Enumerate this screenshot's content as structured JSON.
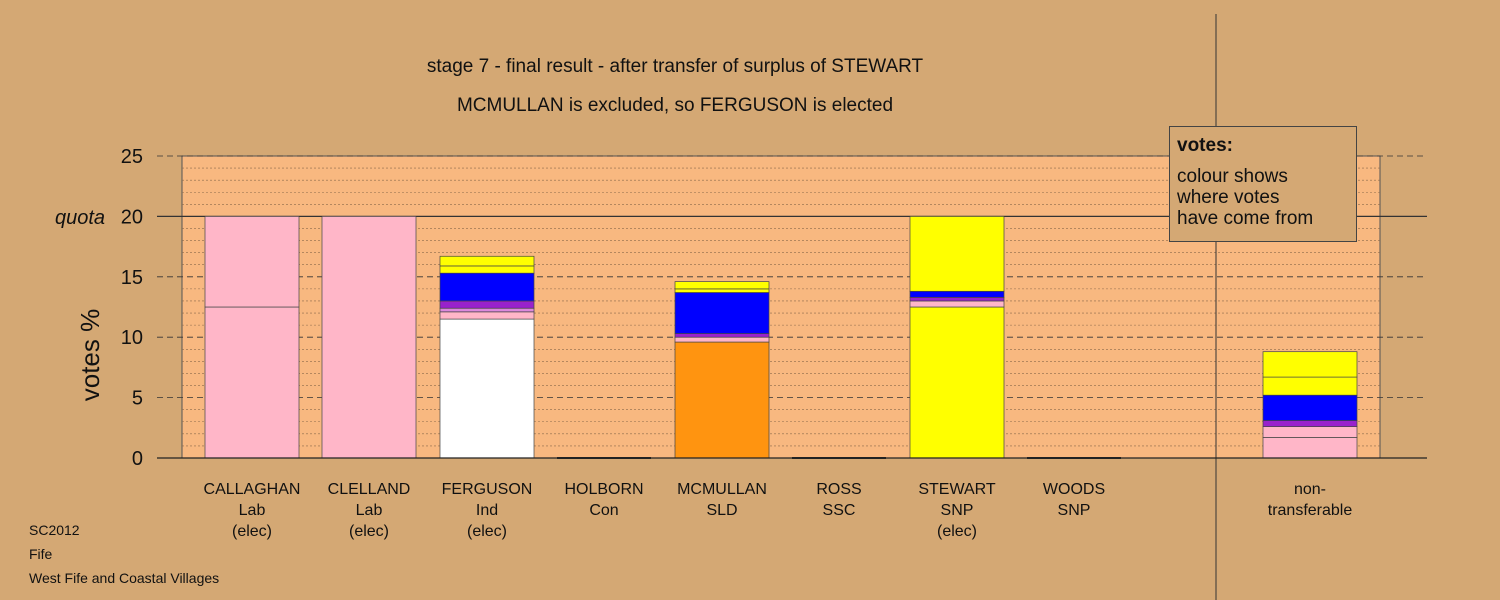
{
  "chart_data": {
    "type": "bar",
    "stacked": true,
    "title": "stage 7 - final result - after transfer of surplus of STEWART",
    "subtitle": "MCMULLAN is excluded, so FERGUSON is elected",
    "ylabel": "votes %",
    "ylim": [
      0,
      25
    ],
    "yticks": [
      0,
      5,
      10,
      15,
      20,
      25
    ],
    "quota_label": "quota",
    "quota": 20,
    "grid": "dashed horizontal",
    "candidates": [
      {
        "name": "CALLAGHAN",
        "party": "Lab",
        "status": "(elec)",
        "segments": [
          {
            "color": "#ffb6c8",
            "value": 12.5
          },
          {
            "color": "#ffb6c8",
            "value": 7.5
          }
        ]
      },
      {
        "name": "CLELLAND",
        "party": "Lab",
        "status": "(elec)",
        "segments": [
          {
            "color": "#ffb6c8",
            "value": 20.0
          }
        ]
      },
      {
        "name": "FERGUSON",
        "party": "Ind",
        "status": "(elec)",
        "segments": [
          {
            "color": "#ffffff",
            "value": 11.5
          },
          {
            "color": "#ffb6c8",
            "value": 0.6
          },
          {
            "color": "#dd88dd",
            "value": 0.3
          },
          {
            "color": "#9922cc",
            "value": 0.6
          },
          {
            "color": "#0000ff",
            "value": 2.3
          },
          {
            "color": "#ffff00",
            "value": 0.6
          },
          {
            "color": "#ffff00",
            "value": 0.8
          }
        ]
      },
      {
        "name": "HOLBORN",
        "party": "Con",
        "status": "",
        "segments": []
      },
      {
        "name": "MCMULLAN",
        "party": "SLD",
        "status": "",
        "segments": [
          {
            "color": "#ff9410",
            "value": 9.6
          },
          {
            "color": "#ffb6c8",
            "value": 0.4
          },
          {
            "color": "#9922cc",
            "value": 0.3
          },
          {
            "color": "#0000ff",
            "value": 3.4
          },
          {
            "color": "#ffff00",
            "value": 0.3
          },
          {
            "color": "#ffff00",
            "value": 0.6
          }
        ]
      },
      {
        "name": "ROSS",
        "party": "SSC",
        "status": "",
        "segments": []
      },
      {
        "name": "STEWART",
        "party": "SNP",
        "status": "(elec)",
        "segments": [
          {
            "color": "#ffff00",
            "value": 12.5
          },
          {
            "color": "#ffb6c8",
            "value": 0.5
          },
          {
            "color": "#9922cc",
            "value": 0.3
          },
          {
            "color": "#0000ff",
            "value": 0.5
          },
          {
            "color": "#ffff00",
            "value": 6.2
          }
        ]
      },
      {
        "name": "WOODS",
        "party": "SNP",
        "status": "",
        "segments": []
      },
      {
        "name": "non-",
        "party": "transferable",
        "status": "",
        "segments": [
          {
            "color": "#ffb6c8",
            "value": 1.7
          },
          {
            "color": "#ffb6c8",
            "value": 0.9
          },
          {
            "color": "#9922cc",
            "value": 0.5
          },
          {
            "color": "#0000ff",
            "value": 2.1
          },
          {
            "color": "#ffff00",
            "value": 1.5
          },
          {
            "color": "#ffff00",
            "value": 2.1
          }
        ]
      }
    ]
  },
  "legend": {
    "title": "votes:",
    "lines": [
      "colour shows",
      "where votes",
      "have come from"
    ]
  },
  "footer": [
    "SC2012",
    "Fife",
    "West Fife and Coastal Villages"
  ],
  "colors": {
    "background": "#d4a874",
    "plot_area": "#f8b880"
  }
}
